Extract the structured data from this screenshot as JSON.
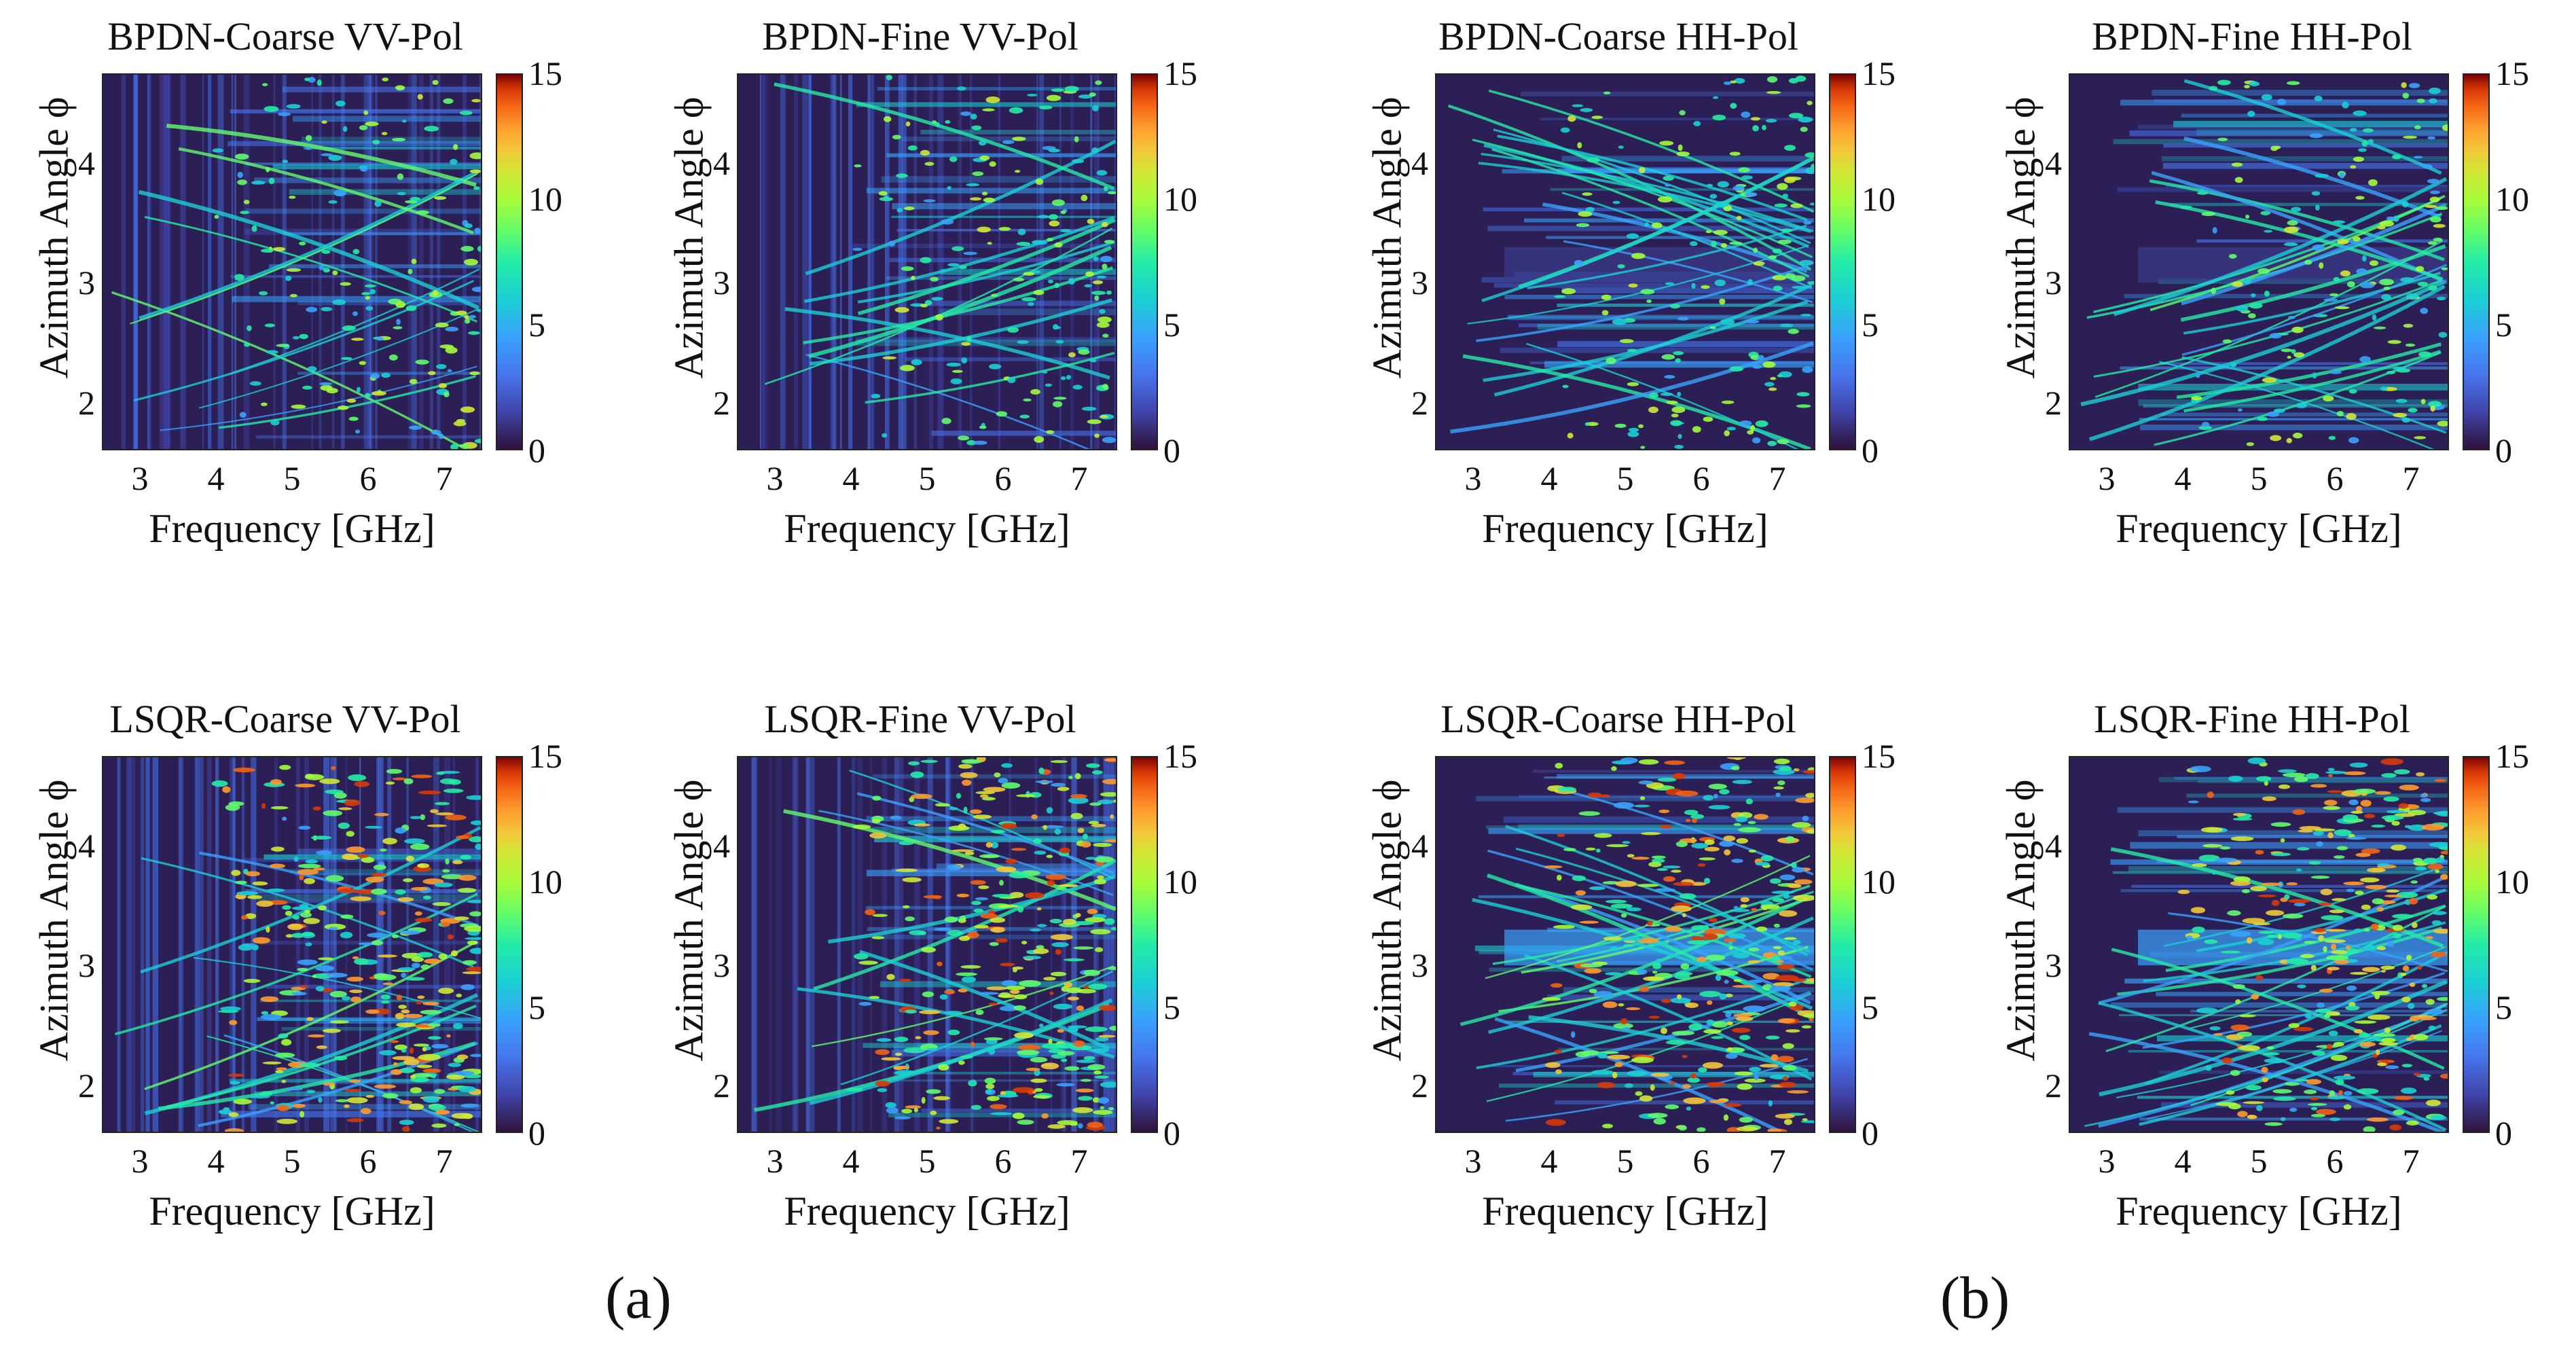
{
  "labels": {
    "a": "(a)",
    "b": "(b)"
  },
  "chart_data": [
    {
      "type": "heatmap",
      "title": "BPDN-Coarse VV-Pol",
      "xlabel": "Frequency [GHz]",
      "ylabel": "Azimuth Angle ϕ",
      "xlim": [
        2.5,
        7.5
      ],
      "ylim": [
        1.6,
        4.75
      ],
      "x_ticks": [
        "3",
        "4",
        "5",
        "6",
        "7"
      ],
      "y_ticks": [
        "2",
        "3",
        "4"
      ],
      "colorbar": {
        "range": [
          0,
          15
        ],
        "ticks": [
          "0",
          "5",
          "10",
          "15"
        ],
        "colormap": "turbo"
      }
    },
    {
      "type": "heatmap",
      "title": "BPDN-Fine VV-Pol",
      "xlabel": "Frequency [GHz]",
      "ylabel": "Azimuth Angle ϕ",
      "xlim": [
        2.5,
        7.5
      ],
      "ylim": [
        1.6,
        4.75
      ],
      "x_ticks": [
        "3",
        "4",
        "5",
        "6",
        "7"
      ],
      "y_ticks": [
        "2",
        "3",
        "4"
      ],
      "colorbar": {
        "range": [
          0,
          15
        ],
        "ticks": [
          "0",
          "5",
          "10",
          "15"
        ],
        "colormap": "turbo"
      }
    },
    {
      "type": "heatmap",
      "title": "BPDN-Coarse HH-Pol",
      "xlabel": "Frequency [GHz]",
      "ylabel": "Azimuth Angle ϕ",
      "xlim": [
        2.5,
        7.5
      ],
      "ylim": [
        1.6,
        4.75
      ],
      "x_ticks": [
        "3",
        "4",
        "5",
        "6",
        "7"
      ],
      "y_ticks": [
        "2",
        "3",
        "4"
      ],
      "colorbar": {
        "range": [
          0,
          15
        ],
        "ticks": [
          "0",
          "5",
          "10",
          "15"
        ],
        "colormap": "turbo"
      }
    },
    {
      "type": "heatmap",
      "title": "BPDN-Fine HH-Pol",
      "xlabel": "Frequency [GHz]",
      "ylabel": "Azimuth Angle ϕ",
      "xlim": [
        2.5,
        7.5
      ],
      "ylim": [
        1.6,
        4.75
      ],
      "x_ticks": [
        "3",
        "4",
        "5",
        "6",
        "7"
      ],
      "y_ticks": [
        "2",
        "3",
        "4"
      ],
      "colorbar": {
        "range": [
          0,
          15
        ],
        "ticks": [
          "0",
          "5",
          "10",
          "15"
        ],
        "colormap": "turbo"
      }
    },
    {
      "type": "heatmap",
      "title": "LSQR-Coarse VV-Pol",
      "xlabel": "Frequency [GHz]",
      "ylabel": "Azimuth Angle ϕ",
      "xlim": [
        2.5,
        7.5
      ],
      "ylim": [
        1.6,
        4.75
      ],
      "x_ticks": [
        "3",
        "4",
        "5",
        "6",
        "7"
      ],
      "y_ticks": [
        "2",
        "3",
        "4"
      ],
      "colorbar": {
        "range": [
          0,
          15
        ],
        "ticks": [
          "0",
          "5",
          "10",
          "15"
        ],
        "colormap": "turbo"
      }
    },
    {
      "type": "heatmap",
      "title": "LSQR-Fine VV-Pol",
      "xlabel": "Frequency [GHz]",
      "ylabel": "Azimuth Angle ϕ",
      "xlim": [
        2.5,
        7.5
      ],
      "ylim": [
        1.6,
        4.75
      ],
      "x_ticks": [
        "3",
        "4",
        "5",
        "6",
        "7"
      ],
      "y_ticks": [
        "2",
        "3",
        "4"
      ],
      "colorbar": {
        "range": [
          0,
          15
        ],
        "ticks": [
          "0",
          "5",
          "10",
          "15"
        ],
        "colormap": "turbo"
      }
    },
    {
      "type": "heatmap",
      "title": "LSQR-Coarse HH-Pol",
      "xlabel": "Frequency [GHz]",
      "ylabel": "Azimuth Angle ϕ",
      "xlim": [
        2.5,
        7.5
      ],
      "ylim": [
        1.6,
        4.75
      ],
      "x_ticks": [
        "3",
        "4",
        "5",
        "6",
        "7"
      ],
      "y_ticks": [
        "2",
        "3",
        "4"
      ],
      "colorbar": {
        "range": [
          0,
          15
        ],
        "ticks": [
          "0",
          "5",
          "10",
          "15"
        ],
        "colormap": "turbo"
      }
    },
    {
      "type": "heatmap",
      "title": "LSQR-Fine HH-Pol",
      "xlabel": "Frequency [GHz]",
      "ylabel": "Azimuth Angle ϕ",
      "xlim": [
        2.5,
        7.5
      ],
      "ylim": [
        1.6,
        4.75
      ],
      "x_ticks": [
        "3",
        "4",
        "5",
        "6",
        "7"
      ],
      "y_ticks": [
        "2",
        "3",
        "4"
      ],
      "colorbar": {
        "range": [
          0,
          15
        ],
        "ticks": [
          "0",
          "5",
          "10",
          "15"
        ],
        "colormap": "turbo"
      }
    }
  ]
}
